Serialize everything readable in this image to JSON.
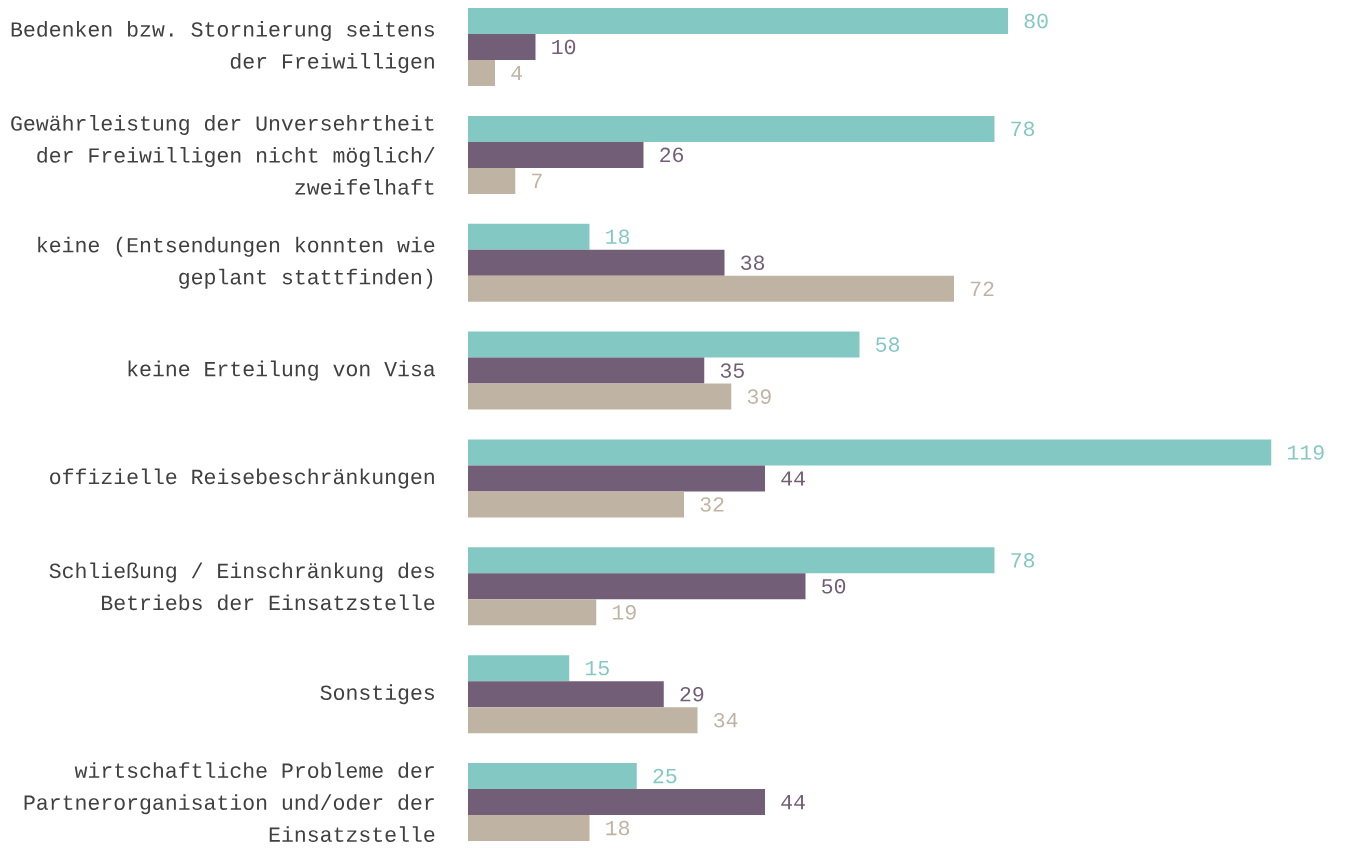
{
  "chart_data": {
    "type": "bar",
    "orientation": "horizontal",
    "categories": [
      "Bedenken bzw. Stornierung seitens der Freiwilligen",
      "Gewährleistung der Unversehrtheit der Freiwilligen nicht möglich/ zweifelhaft",
      "keine (Entsendungen konnten wie geplant stattfinden)",
      "keine Erteilung von Visa",
      "offizielle Reisebeschränkungen",
      "Schließung / Einschränkung des Betriebs der Einsatzstelle",
      "Sonstiges",
      "wirtschaftliche Probleme der Partnerorganisation und/oder der Einsatzstelle"
    ],
    "series": [
      {
        "color": "#84c8c4",
        "values": [
          80,
          78,
          18,
          58,
          119,
          78,
          15,
          25
        ]
      },
      {
        "color": "#725f77",
        "values": [
          10,
          26,
          38,
          35,
          44,
          50,
          29,
          44
        ]
      },
      {
        "color": "#bfb4a4",
        "values": [
          4,
          7,
          72,
          39,
          32,
          19,
          34,
          18
        ]
      }
    ],
    "data_labels": true,
    "tick_labels": "y"
  }
}
